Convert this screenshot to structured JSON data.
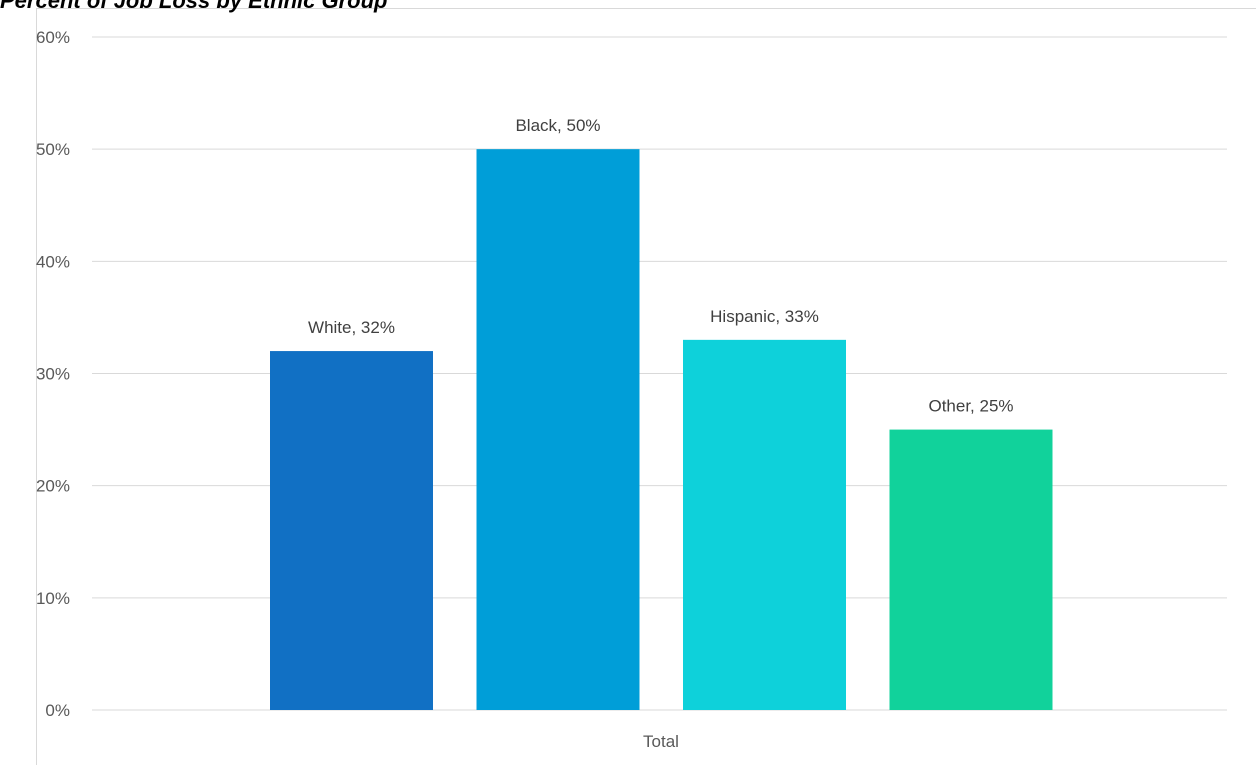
{
  "chart_data": {
    "type": "bar",
    "title": "Percent of Job Loss by Ethnic Group",
    "categories": [
      "Total"
    ],
    "series": [
      {
        "name": "White",
        "value": 32,
        "label": "White, 32%",
        "color": "#1170C4"
      },
      {
        "name": "Black",
        "value": 50,
        "label": "Black, 50%",
        "color": "#009ED8"
      },
      {
        "name": "Hispanic",
        "value": 33,
        "label": "Hispanic, 33%",
        "color": "#0ED1DA"
      },
      {
        "name": "Other",
        "value": 25,
        "label": "Other, 25%",
        "color": "#11D29B"
      }
    ],
    "yticks": [
      "0%",
      "10%",
      "20%",
      "30%",
      "40%",
      "50%",
      "60%"
    ],
    "ylim": [
      0,
      60
    ],
    "xlabel": "",
    "ylabel": "",
    "grid": true,
    "legend": "none"
  }
}
